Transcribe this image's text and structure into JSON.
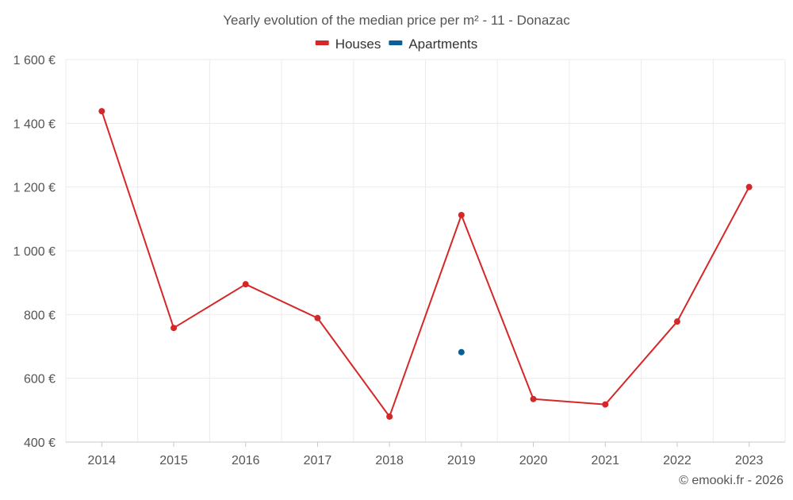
{
  "chart_data": {
    "type": "line",
    "title": "Yearly evolution of the median price per m² - 11 - Donazac",
    "categories": [
      "2014",
      "2015",
      "2016",
      "2017",
      "2018",
      "2019",
      "2020",
      "2021",
      "2022",
      "2023"
    ],
    "ylim": [
      400,
      1600
    ],
    "yticks": [
      400,
      600,
      800,
      1000,
      1200,
      1400,
      1600
    ],
    "ytick_labels": [
      "400 €",
      "600 €",
      "800 €",
      "1 000 €",
      "1 200 €",
      "1 400 €",
      "1 600 €"
    ],
    "grid": true,
    "legend_position": "top-center",
    "series": [
      {
        "name": "Houses",
        "color": "#d62728",
        "values": [
          1438,
          758,
          895,
          789,
          480,
          1112,
          535,
          518,
          778,
          1200
        ]
      },
      {
        "name": "Apartments",
        "color": "#0a5f96",
        "values": [
          null,
          null,
          null,
          null,
          null,
          682,
          null,
          null,
          null,
          null
        ]
      }
    ],
    "credit": "© emooki.fr - 2026"
  }
}
